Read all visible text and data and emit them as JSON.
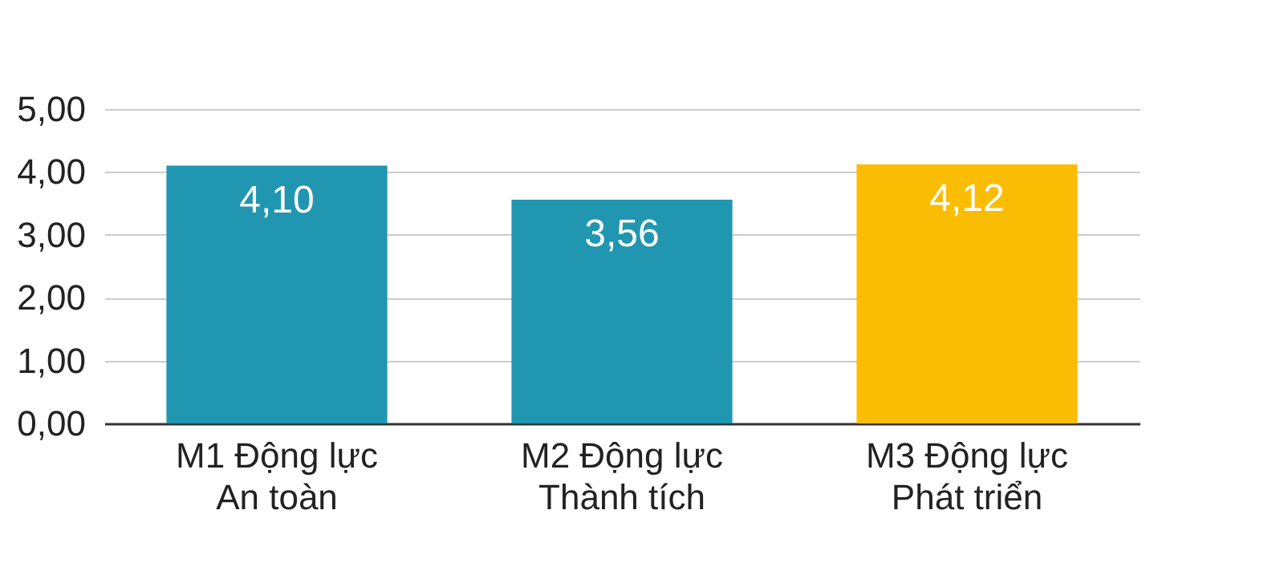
{
  "chart_data": {
    "type": "bar",
    "categories": [
      "M1 Động lực\nAn toàn",
      "M2 Động lực\nThành tích",
      "M3 Động lực\nPhát triển"
    ],
    "values": [
      4.1,
      3.56,
      4.12
    ],
    "colors": [
      "#2196b0",
      "#2196b0",
      "#fbbc04"
    ],
    "value_labels": [
      "4,10",
      "3,56",
      "4,12"
    ],
    "ylim": [
      0,
      5
    ],
    "yticks": [
      {
        "value": 0,
        "label": "0,00"
      },
      {
        "value": 1,
        "label": "1,00"
      },
      {
        "value": 2,
        "label": "2,00"
      },
      {
        "value": 3,
        "label": "3,00"
      },
      {
        "value": 4,
        "label": "4,00"
      },
      {
        "value": 5,
        "label": "5,00"
      }
    ],
    "grid": "y"
  }
}
